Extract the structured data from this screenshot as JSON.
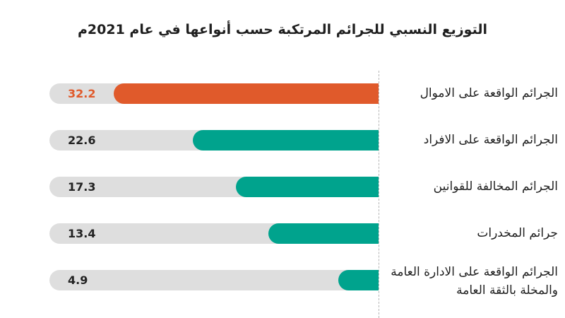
{
  "chart_data": {
    "type": "bar",
    "orientation": "horizontal",
    "title": "التوزيع النسبي للجرائم المرتكبة حسب أنواعها في عام 2021م",
    "categories": [
      "الجرائم الواقعة على الاموال",
      "الجرائم الواقعة على الافراد",
      "الجرائم المخالفة للقوانين",
      "جرائم المخدرات",
      "الجرائم الواقعة على الادارة العامة والمخلة بالثقة العامة"
    ],
    "values": [
      32.2,
      22.6,
      17.3,
      13.4,
      4.9
    ],
    "value_labels": [
      "32.2",
      "22.6",
      "17.3",
      "13.4",
      "4.9"
    ],
    "xlim": [
      0,
      40
    ],
    "highlight_index": 0,
    "colors": {
      "highlight": "#e05a2b",
      "bar": "#00a38d",
      "track": "#dedede",
      "highlight_label": "#e05a2b",
      "label": "#222222"
    },
    "grid": false,
    "legend": "none"
  }
}
